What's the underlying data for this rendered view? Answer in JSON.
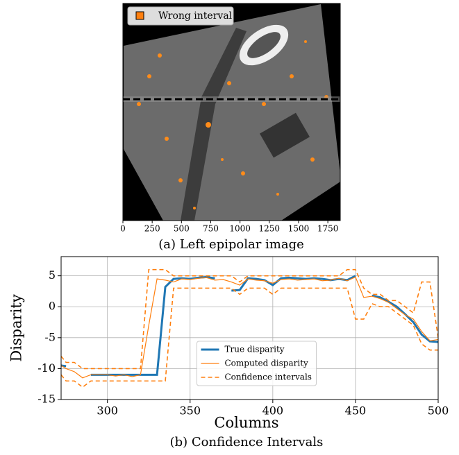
{
  "chart_data": [
    {
      "type": "image",
      "legend": [
        {
          "name": "Wrong interval",
          "color": "#ff7f0e"
        }
      ],
      "xlim": [
        0,
        1856
      ],
      "xticks": [
        0,
        250,
        500,
        750,
        1000,
        1250,
        1500,
        1750
      ],
      "caption": "(a) Left epipolar image"
    },
    {
      "type": "line",
      "xlabel": "Columns",
      "ylabel": "Disparity",
      "caption": "(b) Confidence Intervals",
      "xlim": [
        272,
        500
      ],
      "ylim": [
        -15,
        8.1
      ],
      "xticks": [
        300,
        350,
        400,
        450,
        500
      ],
      "yticks": [
        -15,
        -10,
        -5,
        0,
        5
      ],
      "grid": true,
      "legend_loc": "center",
      "x": [
        272,
        275,
        280,
        285,
        290,
        295,
        300,
        305,
        310,
        315,
        320,
        325,
        330,
        335,
        340,
        345,
        350,
        355,
        360,
        365,
        370,
        375,
        380,
        385,
        390,
        395,
        400,
        405,
        410,
        415,
        420,
        425,
        430,
        435,
        440,
        445,
        450,
        455,
        460,
        465,
        470,
        475,
        480,
        485,
        490,
        495,
        500
      ],
      "series": [
        {
          "name": "True disparity",
          "color": "#1f77b4",
          "style": "solid",
          "width": 3,
          "values": [
            -9.5,
            -9.6,
            null,
            null,
            -11,
            -11,
            -11,
            -11,
            -11,
            -11,
            -11,
            -11,
            -11,
            3.2,
            4.5,
            4.6,
            4.5,
            4.7,
            4.8,
            4.6,
            null,
            2.6,
            2.7,
            4.6,
            4.5,
            4.3,
            3.5,
            4.6,
            4.7,
            4.6,
            4.5,
            4.6,
            4.5,
            4.3,
            4.5,
            4.3,
            5.0,
            null,
            1.8,
            1.5,
            0.8,
            0,
            -1.2,
            -2.5,
            -4.5,
            -5.6,
            -5.7
          ]
        },
        {
          "name": "Computed disparity",
          "color": "#ff7f0e",
          "style": "solid",
          "width": 1.2,
          "values": [
            -9.5,
            -10,
            -10.5,
            -11.5,
            -11,
            -11,
            -11,
            -11.2,
            -11,
            -11.3,
            -11,
            -3,
            4.5,
            4.3,
            4,
            4.5,
            4.4,
            4.6,
            4.7,
            4.3,
            4.4,
            4,
            3.5,
            4.5,
            4.3,
            4.2,
            3.8,
            4.4,
            4.5,
            4.3,
            4.4,
            4.5,
            4.2,
            4.3,
            4.6,
            4.2,
            4.8,
            1.5,
            1.7,
            1.3,
            0.7,
            -0.3,
            -1.3,
            -2,
            -4,
            -5.5,
            -5.3
          ]
        },
        {
          "name": "Confidence intervals",
          "color": "#ff7f0e",
          "style": "dashed",
          "width": 1.6,
          "lower": [
            -11,
            -12,
            -12,
            -13,
            -12,
            -12,
            -12,
            -12,
            -12,
            -12,
            -12,
            -12,
            -12,
            -12,
            3,
            3,
            3,
            3,
            3,
            3,
            3,
            3,
            2,
            3,
            3,
            3,
            2,
            3,
            3,
            3,
            3,
            3,
            3,
            3,
            3,
            3,
            -2,
            -2,
            0.5,
            0,
            0,
            -1,
            -2,
            -3,
            -6,
            -7,
            -7
          ],
          "upper": [
            -8,
            -9,
            -9,
            -10,
            -10,
            -10,
            -10,
            -10,
            -10,
            -10,
            -10,
            6,
            6,
            6,
            5,
            5,
            5,
            5,
            5,
            5,
            5,
            5,
            4,
            5,
            5,
            5,
            5,
            5,
            5,
            5,
            5,
            5,
            5,
            5,
            5,
            6,
            6,
            3,
            2,
            2,
            1,
            1,
            0,
            -1,
            4,
            4,
            -5
          ]
        }
      ]
    }
  ]
}
